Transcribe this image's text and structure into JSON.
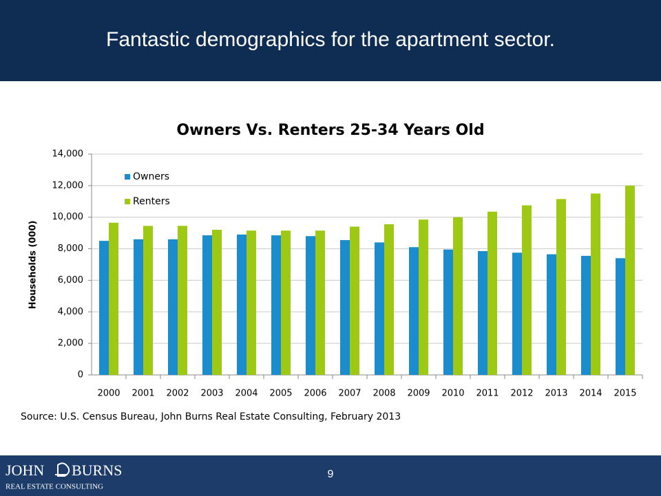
{
  "header": {
    "title": "Fantastic demographics for the apartment sector."
  },
  "chart_data": {
    "type": "bar",
    "title": "Owners Vs. Renters 25-34 Years Old",
    "y_label": "Households (000)",
    "categories": [
      "2000",
      "2001",
      "2002",
      "2003",
      "2004",
      "2005",
      "2006",
      "2007",
      "2008",
      "2009",
      "2010",
      "2011",
      "2012",
      "2013",
      "2014",
      "2015"
    ],
    "series": [
      {
        "name": "Owners",
        "color": "#1b8dcc",
        "values": [
          8500,
          8600,
          8600,
          8850,
          8900,
          8850,
          8800,
          8550,
          8400,
          8100,
          7950,
          7850,
          7750,
          7650,
          7550,
          7400
        ]
      },
      {
        "name": "Renters",
        "color": "#9dc814",
        "values": [
          9650,
          9450,
          9450,
          9200,
          9150,
          9150,
          9150,
          9400,
          9550,
          9850,
          10000,
          10350,
          10750,
          11150,
          11500,
          12000
        ]
      }
    ],
    "ylim": [
      0,
      14000
    ],
    "yticks": [
      0,
      {
        "value": 2000,
        "label": "2,000"
      },
      {
        "value": 4000,
        "label": "4,000"
      },
      {
        "value": 6000,
        "label": "6,000"
      },
      {
        "value": 8000,
        "label": "8,000"
      },
      {
        "value": 10000,
        "label": "10,000"
      },
      {
        "value": 12000,
        "label": "12,000"
      },
      {
        "value": 14000,
        "label": "14,000"
      }
    ],
    "grid": true,
    "legend": "top-left"
  },
  "source": "Source: U.S. Census Bureau, John Burns Real Estate Consulting,  February 2013",
  "footer": {
    "logo_left": "JOHN",
    "logo_right": "BURNS",
    "logo_sub": "REAL ESTATE CONSULTING",
    "page_number": 9
  }
}
